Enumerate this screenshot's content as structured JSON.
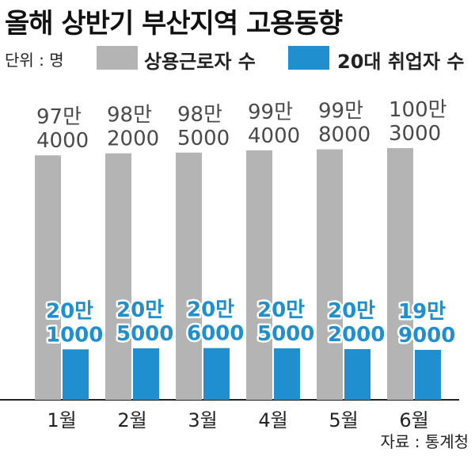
{
  "title": "올해 상반기 부산지역 고용동향",
  "unit_label": "단위 : 명",
  "source": "자료 : 통계청",
  "colors": {
    "regular": "#b4b4b4",
    "youth": "#1f8fd0",
    "youth_label_fill": "#1f8fd0"
  },
  "legend": [
    {
      "name": "상용근로자 수",
      "color": "#b4b4b4"
    },
    {
      "name": "20대 취업자 수",
      "color": "#1f8fd0"
    }
  ],
  "chart_data": {
    "type": "bar",
    "categories": [
      "1월",
      "2월",
      "3월",
      "4월",
      "5월",
      "6월"
    ],
    "series": [
      {
        "name": "상용근로자 수",
        "values": [
          974000,
          982000,
          985000,
          994000,
          998000,
          1003000
        ],
        "labels": [
          [
            "97만",
            "4000"
          ],
          [
            "98만",
            "2000"
          ],
          [
            "98만",
            "5000"
          ],
          [
            "99만",
            "4000"
          ],
          [
            "99만",
            "8000"
          ],
          [
            "100만",
            "3000"
          ]
        ]
      },
      {
        "name": "20대 취업자 수",
        "values": [
          201000,
          205000,
          206000,
          205000,
          202000,
          199000
        ],
        "labels": [
          [
            "20만",
            "1000"
          ],
          [
            "20만",
            "5000"
          ],
          [
            "20만",
            "6000"
          ],
          [
            "20만",
            "5000"
          ],
          [
            "20만",
            "2000"
          ],
          [
            "19만",
            "9000"
          ]
        ]
      }
    ],
    "legend_position": "top"
  }
}
